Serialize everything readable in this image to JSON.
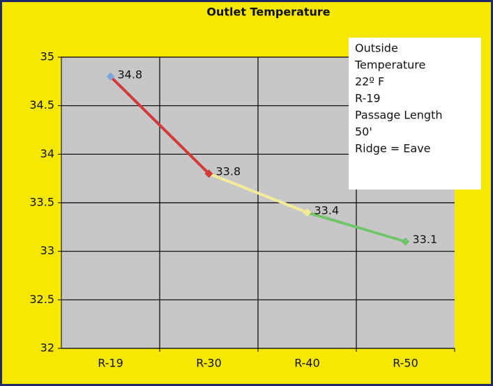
{
  "chart_data": {
    "type": "line",
    "title": "Outlet Temperature",
    "categories": [
      "R-19",
      "R-30",
      "R-40",
      "R-50"
    ],
    "values": [
      34.8,
      33.8,
      33.4,
      33.1
    ],
    "segment_colors": [
      "#d23a3a",
      "#f3eb9a",
      "#72c46a"
    ],
    "marker_colors": [
      "#7fa6dc",
      "#d23a3a",
      "#f3eb9a",
      "#72c46a"
    ],
    "ylim": [
      32,
      35
    ],
    "yticks": [
      32,
      32.5,
      33,
      33.5,
      34,
      34.5,
      35
    ],
    "grid": true,
    "annotation": [
      "Outside",
      "Temperature",
      " 22º F",
      "R-19",
      "Passage Length",
      "50'",
      "Ridge = Eave"
    ]
  }
}
